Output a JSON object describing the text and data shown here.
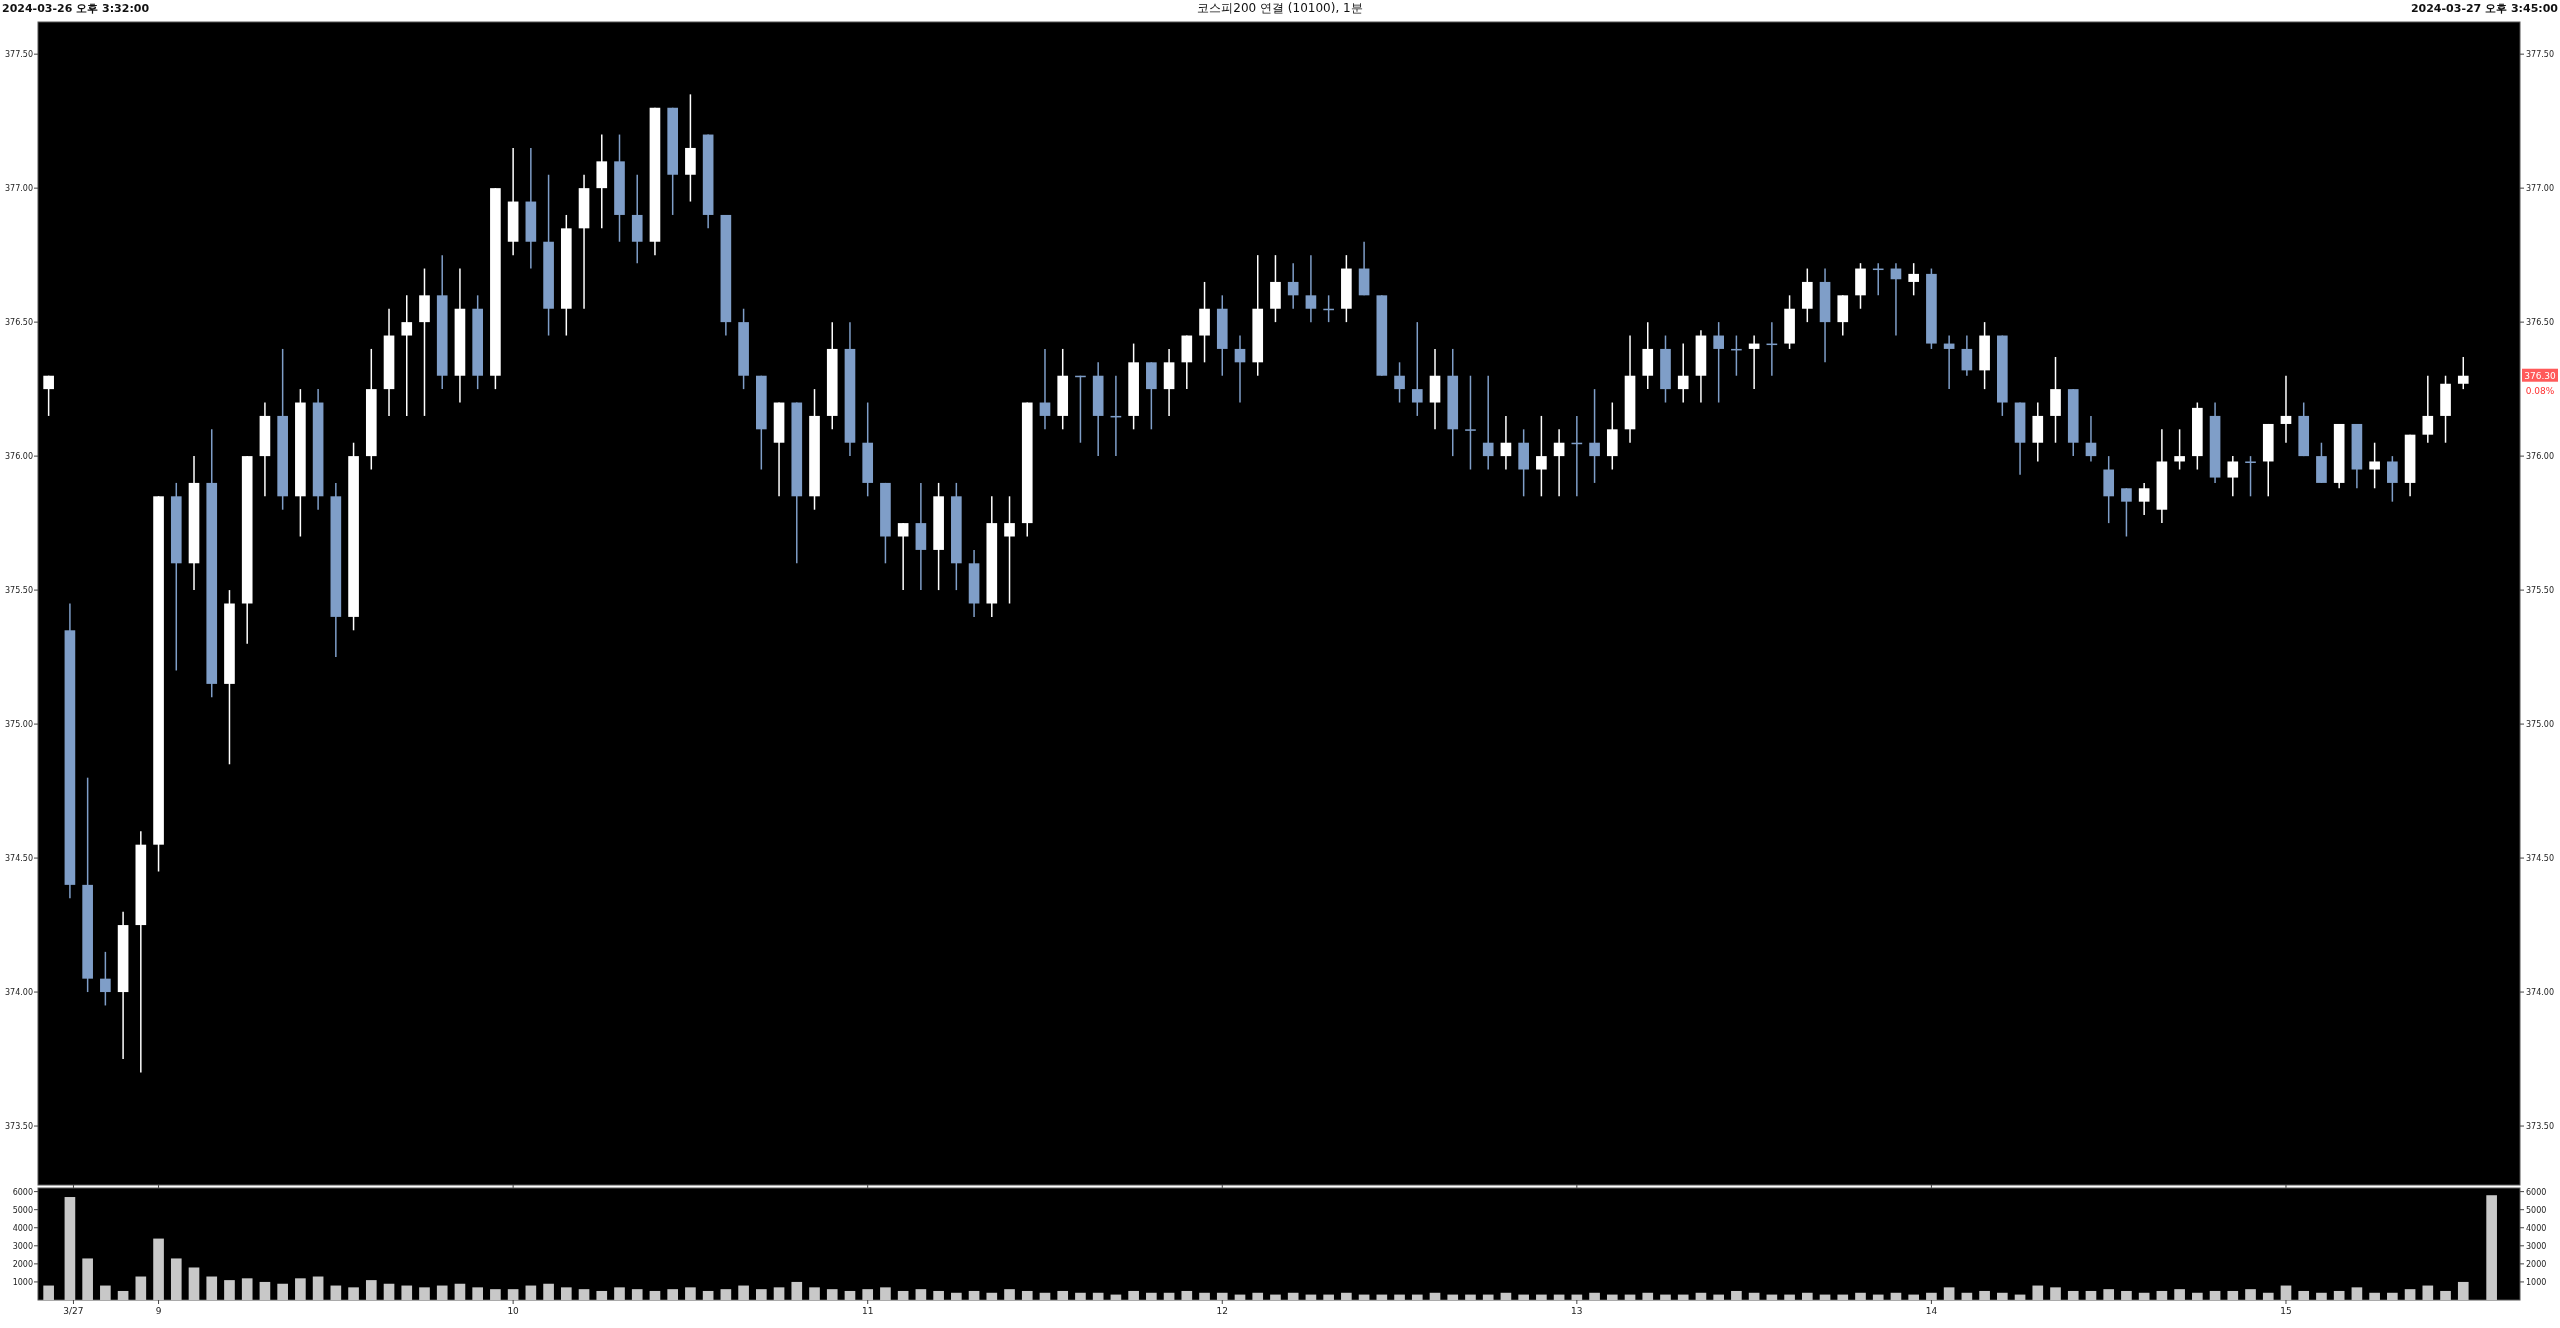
{
  "chart_data": [
    {
      "type": "candlestick",
      "title": "코스피200 연결 (10100), 1분",
      "annotations": [
        "2024-03-26 오후 3:32:00",
        "2024-03-27 오후 3:45:00",
        {
          "text": "376.30",
          "y": 376.3
        },
        "0.08%"
      ],
      "x": [
        8.69,
        8.75,
        8.8,
        8.85,
        8.9,
        8.95,
        9,
        9.05,
        9.1,
        9.15,
        9.2,
        9.25,
        9.3,
        9.35,
        9.4,
        9.45,
        9.5,
        9.55,
        9.6,
        9.65,
        9.7,
        9.75,
        9.8,
        9.85,
        9.9,
        9.95,
        10,
        10.05,
        10.1,
        10.15,
        10.2,
        10.25,
        10.3,
        10.35,
        10.4,
        10.45,
        10.5,
        10.55,
        10.6,
        10.65,
        10.7,
        10.75,
        10.8,
        10.85,
        10.9,
        10.95,
        11,
        11.05,
        11.1,
        11.15,
        11.2,
        11.25,
        11.3,
        11.35,
        11.4,
        11.45,
        11.5,
        11.55,
        11.6,
        11.65,
        11.7,
        11.75,
        11.8,
        11.85,
        11.9,
        11.95,
        12,
        12.05,
        12.1,
        12.15,
        12.2,
        12.25,
        12.3,
        12.35,
        12.4,
        12.45,
        12.5,
        12.55,
        12.6,
        12.65,
        12.7,
        12.75,
        12.8,
        12.85,
        12.9,
        12.95,
        13,
        13.05,
        13.1,
        13.15,
        13.2,
        13.25,
        13.3,
        13.35,
        13.4,
        13.45,
        13.5,
        13.55,
        13.6,
        13.65,
        13.7,
        13.75,
        13.8,
        13.85,
        13.9,
        13.95,
        14,
        14.05,
        14.1,
        14.15,
        14.2,
        14.25,
        14.3,
        14.35,
        14.4,
        14.45,
        14.5,
        14.55,
        14.6,
        14.65,
        14.7,
        14.75,
        14.8,
        14.85,
        14.9,
        14.95,
        15,
        15.05,
        15.1,
        15.15,
        15.2,
        15.25,
        15.3,
        15.35,
        15.4,
        15.45,
        15.5
      ],
      "ohlc": [
        [
          376.25,
          376.3,
          376.15,
          376.3
        ],
        [
          375.35,
          375.45,
          374.35,
          374.4
        ],
        [
          374.4,
          374.8,
          374.0,
          374.05
        ],
        [
          374.05,
          374.15,
          373.95,
          374.0
        ],
        [
          374.0,
          374.3,
          373.75,
          374.25
        ],
        [
          374.25,
          374.6,
          373.7,
          374.55
        ],
        [
          374.55,
          375.85,
          374.45,
          375.85
        ],
        [
          375.85,
          375.9,
          375.2,
          375.6
        ],
        [
          375.6,
          376.0,
          375.5,
          375.9
        ],
        [
          375.9,
          376.1,
          375.1,
          375.15
        ],
        [
          375.15,
          375.5,
          374.85,
          375.45
        ],
        [
          375.45,
          376.0,
          375.3,
          376.0
        ],
        [
          376.0,
          376.2,
          375.85,
          376.15
        ],
        [
          376.15,
          376.4,
          375.8,
          375.85
        ],
        [
          375.85,
          376.25,
          375.7,
          376.2
        ],
        [
          376.2,
          376.25,
          375.8,
          375.85
        ],
        [
          375.85,
          375.9,
          375.25,
          375.4
        ],
        [
          375.4,
          376.05,
          375.35,
          376.0
        ],
        [
          376.0,
          376.4,
          375.95,
          376.25
        ],
        [
          376.25,
          376.55,
          376.15,
          376.45
        ],
        [
          376.45,
          376.6,
          376.15,
          376.5
        ],
        [
          376.5,
          376.7,
          376.15,
          376.6
        ],
        [
          376.6,
          376.75,
          376.25,
          376.3
        ],
        [
          376.3,
          376.7,
          376.2,
          376.55
        ],
        [
          376.55,
          376.6,
          376.25,
          376.3
        ],
        [
          376.3,
          377.0,
          376.25,
          377.0
        ],
        [
          376.8,
          377.15,
          376.75,
          376.95
        ],
        [
          376.95,
          377.15,
          376.7,
          376.8
        ],
        [
          376.8,
          377.05,
          376.45,
          376.55
        ],
        [
          376.55,
          376.9,
          376.45,
          376.85
        ],
        [
          376.85,
          377.05,
          376.55,
          377.0
        ],
        [
          377.0,
          377.2,
          376.85,
          377.1
        ],
        [
          377.1,
          377.2,
          376.8,
          376.9
        ],
        [
          376.9,
          377.05,
          376.72,
          376.8
        ],
        [
          376.8,
          377.3,
          376.75,
          377.3
        ],
        [
          377.3,
          377.3,
          376.9,
          377.05
        ],
        [
          377.05,
          377.35,
          376.95,
          377.15
        ],
        [
          377.2,
          377.2,
          376.85,
          376.9
        ],
        [
          376.9,
          376.9,
          376.45,
          376.5
        ],
        [
          376.5,
          376.55,
          376.25,
          376.3
        ],
        [
          376.3,
          376.3,
          375.95,
          376.1
        ],
        [
          376.05,
          376.2,
          375.85,
          376.2
        ],
        [
          376.2,
          376.2,
          375.6,
          375.85
        ],
        [
          375.85,
          376.25,
          375.8,
          376.15
        ],
        [
          376.15,
          376.5,
          376.1,
          376.4
        ],
        [
          376.4,
          376.5,
          376.0,
          376.05
        ],
        [
          376.05,
          376.2,
          375.85,
          375.9
        ],
        [
          375.9,
          375.9,
          375.6,
          375.7
        ],
        [
          375.7,
          375.75,
          375.5,
          375.75
        ],
        [
          375.75,
          375.9,
          375.5,
          375.65
        ],
        [
          375.65,
          375.9,
          375.5,
          375.85
        ],
        [
          375.85,
          375.9,
          375.5,
          375.6
        ],
        [
          375.6,
          375.65,
          375.4,
          375.45
        ],
        [
          375.45,
          375.85,
          375.4,
          375.75
        ],
        [
          375.7,
          375.85,
          375.45,
          375.75
        ],
        [
          375.75,
          376.2,
          375.7,
          376.2
        ],
        [
          376.2,
          376.4,
          376.1,
          376.15
        ],
        [
          376.15,
          376.4,
          376.1,
          376.3
        ],
        [
          376.3,
          376.3,
          376.05,
          376.3
        ],
        [
          376.3,
          376.35,
          376.0,
          376.15
        ],
        [
          376.15,
          376.3,
          376.0,
          376.15
        ],
        [
          376.15,
          376.42,
          376.1,
          376.35
        ],
        [
          376.35,
          376.35,
          376.1,
          376.25
        ],
        [
          376.25,
          376.4,
          376.15,
          376.35
        ],
        [
          376.35,
          376.45,
          376.25,
          376.45
        ],
        [
          376.45,
          376.65,
          376.35,
          376.55
        ],
        [
          376.55,
          376.6,
          376.3,
          376.4
        ],
        [
          376.4,
          376.45,
          376.2,
          376.35
        ],
        [
          376.35,
          376.75,
          376.3,
          376.55
        ],
        [
          376.55,
          376.75,
          376.5,
          376.65
        ],
        [
          376.65,
          376.72,
          376.55,
          376.6
        ],
        [
          376.6,
          376.75,
          376.5,
          376.55
        ],
        [
          376.55,
          376.6,
          376.5,
          376.55
        ],
        [
          376.55,
          376.75,
          376.5,
          376.7
        ],
        [
          376.7,
          376.8,
          376.6,
          376.6
        ],
        [
          376.6,
          376.6,
          376.3,
          376.3
        ],
        [
          376.3,
          376.35,
          376.2,
          376.25
        ],
        [
          376.25,
          376.5,
          376.15,
          376.2
        ],
        [
          376.2,
          376.4,
          376.1,
          376.3
        ],
        [
          376.3,
          376.4,
          376.0,
          376.1
        ],
        [
          376.1,
          376.3,
          375.95,
          376.1
        ],
        [
          376.05,
          376.3,
          375.95,
          376.0
        ],
        [
          376.0,
          376.15,
          375.95,
          376.05
        ],
        [
          376.05,
          376.1,
          375.85,
          375.95
        ],
        [
          375.95,
          376.15,
          375.85,
          376.0
        ],
        [
          376.0,
          376.1,
          375.85,
          376.05
        ],
        [
          376.05,
          376.15,
          375.85,
          376.05
        ],
        [
          376.05,
          376.25,
          375.9,
          376.0
        ],
        [
          376.0,
          376.2,
          375.95,
          376.1
        ],
        [
          376.1,
          376.45,
          376.05,
          376.3
        ],
        [
          376.3,
          376.5,
          376.25,
          376.4
        ],
        [
          376.4,
          376.45,
          376.2,
          376.25
        ],
        [
          376.25,
          376.42,
          376.2,
          376.3
        ],
        [
          376.3,
          376.47,
          376.2,
          376.45
        ],
        [
          376.45,
          376.5,
          376.2,
          376.4
        ],
        [
          376.4,
          376.45,
          376.3,
          376.4
        ],
        [
          376.4,
          376.45,
          376.25,
          376.42
        ],
        [
          376.42,
          376.5,
          376.3,
          376.42
        ],
        [
          376.42,
          376.6,
          376.4,
          376.55
        ],
        [
          376.55,
          376.7,
          376.5,
          376.65
        ],
        [
          376.65,
          376.7,
          376.35,
          376.5
        ],
        [
          376.5,
          376.6,
          376.45,
          376.6
        ],
        [
          376.6,
          376.72,
          376.55,
          376.7
        ],
        [
          376.7,
          376.72,
          376.6,
          376.7
        ],
        [
          376.7,
          376.72,
          376.45,
          376.66
        ],
        [
          376.65,
          376.72,
          376.6,
          376.68
        ],
        [
          376.68,
          376.7,
          376.4,
          376.42
        ],
        [
          376.42,
          376.45,
          376.25,
          376.4
        ],
        [
          376.4,
          376.45,
          376.3,
          376.32
        ],
        [
          376.32,
          376.5,
          376.25,
          376.45
        ],
        [
          376.45,
          376.45,
          376.15,
          376.2
        ],
        [
          376.2,
          376.2,
          375.93,
          376.05
        ],
        [
          376.05,
          376.2,
          375.98,
          376.15
        ],
        [
          376.15,
          376.37,
          376.05,
          376.25
        ],
        [
          376.25,
          376.25,
          376.0,
          376.05
        ],
        [
          376.05,
          376.15,
          375.98,
          376.0
        ],
        [
          375.95,
          376.0,
          375.75,
          375.85
        ],
        [
          375.88,
          375.88,
          375.7,
          375.83
        ],
        [
          375.83,
          375.9,
          375.78,
          375.88
        ],
        [
          375.8,
          376.1,
          375.75,
          375.98
        ],
        [
          375.98,
          376.1,
          375.95,
          376.0
        ],
        [
          376.0,
          376.2,
          375.95,
          376.18
        ],
        [
          376.15,
          376.2,
          375.9,
          375.92
        ],
        [
          375.92,
          376.0,
          375.85,
          375.98
        ],
        [
          375.98,
          376.0,
          375.85,
          375.98
        ],
        [
          375.98,
          376.12,
          375.85,
          376.12
        ],
        [
          376.12,
          376.3,
          376.05,
          376.15
        ],
        [
          376.15,
          376.2,
          376.0,
          376.0
        ],
        [
          376.0,
          376.05,
          375.9,
          375.9
        ],
        [
          375.9,
          376.12,
          375.88,
          376.12
        ],
        [
          376.12,
          376.12,
          375.88,
          375.95
        ],
        [
          375.95,
          376.05,
          375.88,
          375.98
        ],
        [
          375.98,
          376.0,
          375.83,
          375.9
        ],
        [
          375.9,
          376.08,
          375.85,
          376.08
        ],
        [
          376.08,
          376.3,
          376.05,
          376.15
        ],
        [
          376.15,
          376.3,
          376.05,
          376.27
        ],
        [
          376.27,
          376.37,
          376.25,
          376.3
        ]
      ],
      "colors": [
        "#ffffff",
        "#7f9ec8",
        "#7f9ec8",
        "#7f9ec8",
        "#ffffff",
        "#ffffff",
        "#ffffff",
        "#7f9ec8",
        "#ffffff",
        "#7f9ec8",
        "#ffffff",
        "#ffffff",
        "#ffffff",
        "#7f9ec8",
        "#ffffff",
        "#7f9ec8",
        "#7f9ec8",
        "#ffffff",
        "#ffffff",
        "#ffffff",
        "#ffffff",
        "#ffffff",
        "#7f9ec8",
        "#ffffff",
        "#7f9ec8",
        "#ffffff",
        "#ffffff",
        "#7f9ec8",
        "#7f9ec8",
        "#ffffff",
        "#ffffff",
        "#ffffff",
        "#7f9ec8",
        "#7f9ec8",
        "#ffffff",
        "#7f9ec8",
        "#ffffff",
        "#7f9ec8",
        "#7f9ec8",
        "#7f9ec8",
        "#7f9ec8",
        "#ffffff",
        "#7f9ec8",
        "#ffffff",
        "#ffffff",
        "#7f9ec8",
        "#7f9ec8",
        "#7f9ec8",
        "#ffffff",
        "#7f9ec8",
        "#ffffff",
        "#7f9ec8",
        "#7f9ec8",
        "#ffffff",
        "#ffffff",
        "#ffffff",
        "#7f9ec8",
        "#ffffff",
        "#7f9ec8",
        "#7f9ec8",
        "#7f9ec8",
        "#ffffff",
        "#7f9ec8",
        "#ffffff",
        "#ffffff",
        "#ffffff",
        "#7f9ec8",
        "#7f9ec8",
        "#ffffff",
        "#ffffff",
        "#7f9ec8",
        "#7f9ec8",
        "#7f9ec8",
        "#ffffff",
        "#7f9ec8",
        "#7f9ec8",
        "#7f9ec8",
        "#7f9ec8",
        "#ffffff",
        "#7f9ec8",
        "#7f9ec8",
        "#7f9ec8",
        "#ffffff",
        "#7f9ec8",
        "#ffffff",
        "#ffffff",
        "#7f9ec8",
        "#7f9ec8",
        "#ffffff",
        "#ffffff",
        "#ffffff",
        "#7f9ec8",
        "#ffffff",
        "#ffffff",
        "#7f9ec8",
        "#7f9ec8",
        "#ffffff",
        "#7f9ec8",
        "#ffffff",
        "#ffffff",
        "#7f9ec8",
        "#ffffff",
        "#ffffff",
        "#7f9ec8",
        "#7f9ec8",
        "#ffffff",
        "#7f9ec8",
        "#7f9ec8",
        "#7f9ec8",
        "#ffffff",
        "#7f9ec8",
        "#7f9ec8",
        "#ffffff",
        "#ffffff",
        "#7f9ec8",
        "#7f9ec8",
        "#7f9ec8",
        "#7f9ec8",
        "#ffffff",
        "#ffffff",
        "#ffffff",
        "#ffffff",
        "#7f9ec8",
        "#ffffff",
        "#7f9ec8",
        "#ffffff",
        "#ffffff",
        "#7f9ec8",
        "#7f9ec8",
        "#ffffff",
        "#7f9ec8",
        "#ffffff",
        "#7f9ec8",
        "#ffffff",
        "#ffffff",
        "#ffffff",
        "#ffffff"
      ],
      "xlim": [
        8.66,
        15.66
      ],
      "xticks": [
        {
          "value": 8.76,
          "label": null
        },
        {
          "value": 9,
          "label": null
        },
        {
          "value": 10,
          "label": null
        },
        {
          "value": 11,
          "label": null
        },
        {
          "value": 12,
          "label": null
        },
        {
          "value": 13,
          "label": null
        },
        {
          "value": 14,
          "label": null
        },
        {
          "value": 15,
          "label": null
        }
      ],
      "ylim": [
        373.28,
        377.62
      ],
      "yticks": [
        {
          "value": 373.5,
          "label": "373.50"
        },
        {
          "value": 374,
          "label": "374.00"
        },
        {
          "value": 374.5,
          "label": "374.50"
        },
        {
          "value": 375,
          "label": "375.00"
        },
        {
          "value": 375.5,
          "label": "375.50"
        },
        {
          "value": 376,
          "label": "376.00"
        },
        {
          "value": 376.5,
          "label": "376.50"
        },
        {
          "value": 377,
          "label": "377.00"
        },
        {
          "value": 377.5,
          "label": "377.50"
        }
      ],
      "y2lim": [
        373.28,
        377.62
      ],
      "y2ticks": [
        {
          "value": 373.5,
          "label": "373.50"
        },
        {
          "value": 374,
          "label": "374.00"
        },
        {
          "value": 374.5,
          "label": "374.50"
        },
        {
          "value": 375,
          "label": "375.00"
        },
        {
          "value": 375.5,
          "label": "375.50"
        },
        {
          "value": 376,
          "label": "376.00"
        },
        {
          "value": 376.5,
          "label": "376.50"
        },
        {
          "value": 377,
          "label": "377.00"
        },
        {
          "value": 377.5,
          "label": "377.50"
        }
      ],
      "tick_labels": "y"
    },
    {
      "type": "bar",
      "color": "#c8c8c8",
      "x": [
        8.69,
        8.75,
        8.8,
        8.85,
        8.9,
        8.95,
        9,
        9.05,
        9.1,
        9.15,
        9.2,
        9.25,
        9.3,
        9.35,
        9.4,
        9.45,
        9.5,
        9.55,
        9.6,
        9.65,
        9.7,
        9.75,
        9.8,
        9.85,
        9.9,
        9.95,
        10,
        10.05,
        10.1,
        10.15,
        10.2,
        10.25,
        10.3,
        10.35,
        10.4,
        10.45,
        10.5,
        10.55,
        10.6,
        10.65,
        10.7,
        10.75,
        10.8,
        10.85,
        10.9,
        10.95,
        11,
        11.05,
        11.1,
        11.15,
        11.2,
        11.25,
        11.3,
        11.35,
        11.4,
        11.45,
        11.5,
        11.55,
        11.6,
        11.65,
        11.7,
        11.75,
        11.8,
        11.85,
        11.9,
        11.95,
        12,
        12.05,
        12.1,
        12.15,
        12.2,
        12.25,
        12.3,
        12.35,
        12.4,
        12.45,
        12.5,
        12.55,
        12.6,
        12.65,
        12.7,
        12.75,
        12.8,
        12.85,
        12.9,
        12.95,
        13,
        13.05,
        13.1,
        13.15,
        13.2,
        13.25,
        13.3,
        13.35,
        13.4,
        13.45,
        13.5,
        13.55,
        13.6,
        13.65,
        13.7,
        13.75,
        13.8,
        13.85,
        13.9,
        13.95,
        14,
        14.05,
        14.1,
        14.15,
        14.2,
        14.25,
        14.3,
        14.35,
        14.4,
        14.45,
        14.5,
        14.55,
        14.6,
        14.65,
        14.7,
        14.75,
        14.8,
        14.85,
        14.9,
        14.95,
        15,
        15.05,
        15.1,
        15.15,
        15.2,
        15.25,
        15.3,
        15.35,
        15.4,
        15.45,
        15.5,
        15.58
      ],
      "values": [
        800,
        5700,
        2300,
        800,
        500,
        1300,
        3400,
        2300,
        1800,
        1300,
        1100,
        1200,
        1000,
        900,
        1200,
        1300,
        800,
        700,
        1100,
        900,
        800,
        700,
        800,
        900,
        700,
        600,
        600,
        800,
        900,
        700,
        600,
        500,
        700,
        600,
        500,
        600,
        700,
        500,
        600,
        800,
        600,
        700,
        1000,
        700,
        600,
        500,
        600,
        700,
        500,
        600,
        500,
        400,
        500,
        400,
        600,
        500,
        400,
        500,
        400,
        400,
        300,
        500,
        400,
        400,
        500,
        400,
        400,
        300,
        400,
        300,
        400,
        300,
        300,
        400,
        300,
        300,
        300,
        300,
        400,
        300,
        300,
        300,
        400,
        300,
        300,
        300,
        300,
        400,
        300,
        300,
        400,
        300,
        300,
        400,
        300,
        500,
        400,
        300,
        300,
        400,
        300,
        300,
        400,
        300,
        400,
        300,
        400,
        700,
        400,
        500,
        400,
        300,
        800,
        700,
        500,
        500,
        600,
        500,
        400,
        500,
        600,
        400,
        500,
        500,
        600,
        400,
        800,
        500,
        400,
        500,
        700,
        400,
        400,
        600,
        800,
        500,
        1000,
        5800
      ],
      "xlim": [
        8.66,
        15.66
      ],
      "xticks": [
        {
          "value": 8.76,
          "label": "3/27"
        },
        9,
        10,
        11,
        12,
        13,
        14,
        15
      ],
      "ylim": [
        0,
        6200
      ],
      "yticks": [
        1000,
        2000,
        3000,
        4000,
        5000,
        6000
      ],
      "y2lim": [
        0,
        6200
      ],
      "y2ticks": [
        1000,
        2000,
        3000,
        4000,
        5000,
        6000
      ]
    }
  ]
}
